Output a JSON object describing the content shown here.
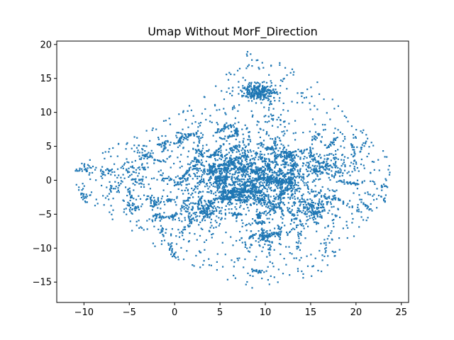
{
  "chart_data": {
    "type": "scatter",
    "title": "Umap Without MorF_Direction",
    "xlabel": "",
    "ylabel": "",
    "xlim": [
      -13.0,
      25.8
    ],
    "ylim": [
      -18.0,
      20.5
    ],
    "x_ticks": [
      -10,
      -5,
      0,
      5,
      10,
      15,
      20,
      25
    ],
    "y_ticks": [
      -15,
      -10,
      -5,
      0,
      5,
      10,
      15,
      20
    ],
    "x_tick_labels": [
      "−10",
      "−5",
      "0",
      "5",
      "10",
      "15",
      "20",
      "25"
    ],
    "y_tick_labels": [
      "−15",
      "−10",
      "−5",
      "0",
      "5",
      "10",
      "15",
      "20"
    ],
    "grid": false,
    "legend": "none",
    "series": [
      {
        "color": "#1f77b4",
        "marker_size_pt": 1.5,
        "point_count_approx": 20000,
        "dense_clusters": [
          {
            "x": 9.5,
            "y": 13.2
          },
          {
            "x": 7.5,
            "y": 3.0
          },
          {
            "x": 12.0,
            "y": 0.0
          },
          {
            "x": 3.0,
            "y": -4.5
          },
          {
            "x": 15.0,
            "y": -4.0
          },
          {
            "x": -10.0,
            "y": 1.5
          },
          {
            "x": -5.0,
            "y": -4.0
          }
        ],
        "extent": {
          "x": [
            -11.2,
            24.1
          ],
          "y": [
            -16.2,
            18.9
          ]
        }
      }
    ]
  }
}
